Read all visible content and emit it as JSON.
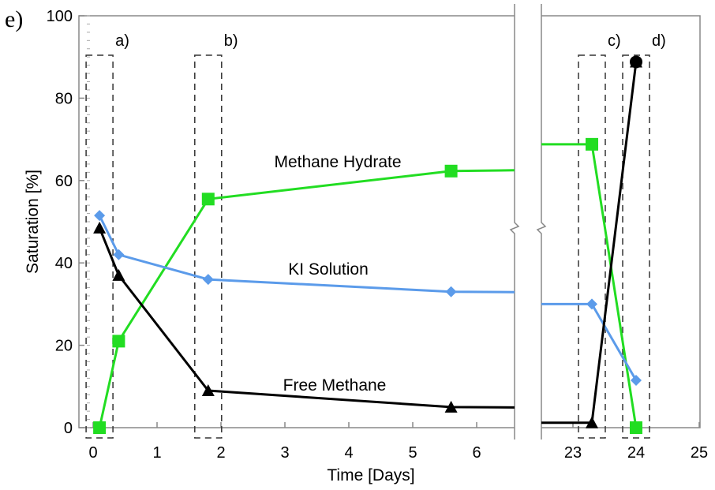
{
  "panel_label": "e)",
  "chart_data": {
    "type": "line",
    "xlabel": "Time [Days]",
    "ylabel": "Saturation [%]",
    "ylim": [
      0,
      100
    ],
    "yticks": [
      "0",
      "20",
      "40",
      "60",
      "80",
      "100"
    ],
    "x_break": {
      "left_range": [
        0,
        6.5
      ],
      "right_range": [
        22.6,
        25
      ]
    },
    "xticks": [
      "0",
      "1",
      "2",
      "3",
      "4",
      "5",
      "6",
      "23",
      "24",
      "25"
    ],
    "grid": false,
    "series": [
      {
        "name": "Methane Hydrate",
        "color": "#22dd22",
        "marker": "square",
        "points": [
          [
            0.1,
            0
          ],
          [
            0.4,
            21
          ],
          [
            1.8,
            55.5
          ],
          [
            5.6,
            62.3
          ],
          [
            23.3,
            68.8
          ],
          [
            24.0,
            0
          ]
        ]
      },
      {
        "name": "KI Solution",
        "color": "#5b9bea",
        "marker": "diamond",
        "points": [
          [
            0.1,
            51.5
          ],
          [
            0.4,
            42
          ],
          [
            1.8,
            36
          ],
          [
            5.6,
            33
          ],
          [
            23.3,
            30
          ],
          [
            24.0,
            11.5
          ]
        ]
      },
      {
        "name": "Free Methane",
        "color": "#000000",
        "marker": "triangle",
        "points": [
          [
            0.1,
            48.5
          ],
          [
            0.4,
            37
          ],
          [
            1.8,
            9
          ],
          [
            5.6,
            5
          ],
          [
            23.3,
            1.2
          ],
          [
            24.0,
            88.8
          ]
        ]
      }
    ],
    "endpoint_marker": {
      "series": "Free Methane",
      "x": 24.0,
      "y": 88.8,
      "marker": "circle"
    },
    "annotations": [
      {
        "label": "a)",
        "x": 0.1
      },
      {
        "label": "b)",
        "x": 1.8
      },
      {
        "label": "c)",
        "x": 23.3
      },
      {
        "label": "d)",
        "x": 24.0
      }
    ]
  }
}
